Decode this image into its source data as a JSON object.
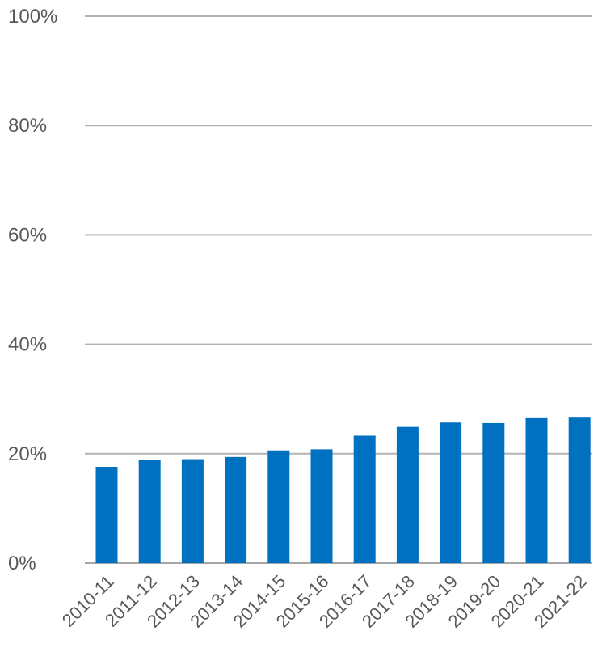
{
  "chart_data": {
    "type": "bar",
    "categories": [
      "2010-11",
      "2011-12",
      "2012-13",
      "2013-14",
      "2014-15",
      "2015-16",
      "2016-17",
      "2017-18",
      "2018-19",
      "2019-20",
      "2020-21",
      "2021-22"
    ],
    "values": [
      17.6,
      18.9,
      19.0,
      19.4,
      20.6,
      20.8,
      23.3,
      24.9,
      25.7,
      25.6,
      26.5,
      26.6
    ],
    "ylim": [
      0,
      100
    ],
    "yticks": [
      0,
      20,
      40,
      60,
      80,
      100
    ],
    "ytick_labels": [
      "0%",
      "20%",
      "40%",
      "60%",
      "80%",
      "100%"
    ],
    "grid": true,
    "bar_color": "#0070c0"
  }
}
